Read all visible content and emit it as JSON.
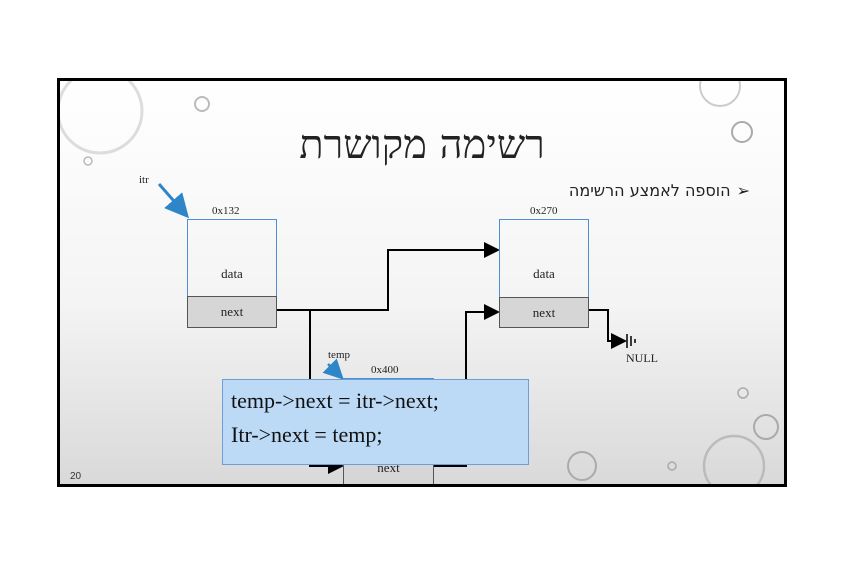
{
  "slide": {
    "title": "רשימה מקושרת",
    "bullet_mark": "➢",
    "bullet_text": "הוספה לאמצע הרשימה",
    "page_number": "20"
  },
  "nodes": {
    "itr_label": "itr",
    "temp_label": "temp",
    "node1": {
      "address": "0x132",
      "data": "data",
      "next": "next"
    },
    "node2": {
      "address": "0x270",
      "data": "data",
      "next": "next"
    },
    "node3": {
      "address": "0x400",
      "next": "next"
    },
    "null_label": "NULL"
  },
  "code": {
    "line1": "temp->next = itr->next;",
    "line2": "Itr->next = temp;"
  },
  "colors": {
    "pointer_arrow": "#2e86c9",
    "box_border": "#4b8fd6",
    "code_bg": "#bcd9f5"
  }
}
